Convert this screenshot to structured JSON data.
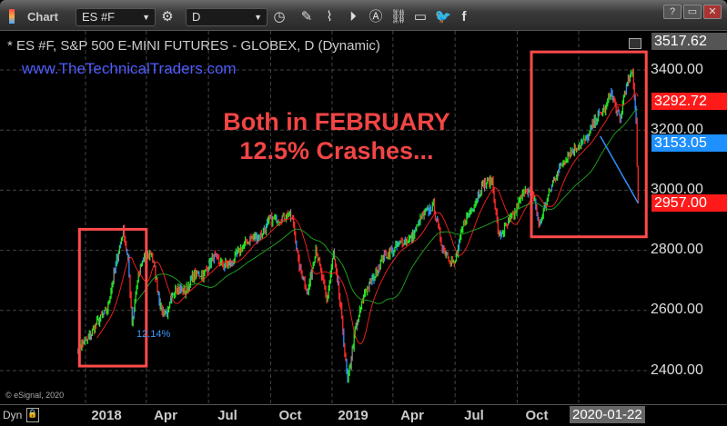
{
  "toolbar": {
    "title": "Chart",
    "symbol": "ES #F",
    "interval": "D",
    "icons": [
      "gear-icon",
      "clock-icon",
      "pencil-icon",
      "study-icon",
      "play-icon",
      "alert-icon",
      "link-icon",
      "comment-icon",
      "twitter-icon",
      "facebook-icon"
    ],
    "window_buttons": [
      "?",
      "▭",
      "✕"
    ]
  },
  "chart_header": {
    "symbol_line": "* ES #F, S&P 500 E-MINI FUTURES - GLOBEX, D (Dynamic)",
    "website": "www.TheTechnicalTraders.com"
  },
  "annotations": {
    "headline_1": "Both in FEBRUARY",
    "headline_2": "12.5% Crashes...",
    "pct_label": "12.14%",
    "copyright": "© eSignal, 2020"
  },
  "price_tags": {
    "top": "3517.62",
    "ma_red": "3292.72",
    "ma_blue": "3153.05",
    "last": "2957.00"
  },
  "colors": {
    "up": "#22e622",
    "down": "#ff2a2a",
    "box": "#ff4a4a",
    "headline": "#f24545",
    "trend": "#2f8fff",
    "ma_short": "#ff2020",
    "ma_long": "#1faa1f",
    "tag_red": "#ff1a1a",
    "tag_blue": "#1e90ff"
  },
  "xaxis": {
    "dyn": "Dyn",
    "labels": [
      "2018",
      "Apr",
      "Jul",
      "Oct",
      "2019",
      "Apr",
      "Jul",
      "Oct"
    ],
    "current": "2020-01-22"
  },
  "chart_data": {
    "type": "candlestick",
    "yticks": [
      "3400.00",
      "3200.00",
      "3000.00",
      "2800.00",
      "2600.00",
      "2400.00"
    ],
    "ylim": [
      2330,
      3517.62
    ],
    "grid": true,
    "closes": [
      [
        "2017-11-20",
        2480
      ],
      [
        "2017-12-04",
        2500
      ],
      [
        "2017-12-18",
        2560
      ],
      [
        "2018-01-02",
        2600
      ],
      [
        "2018-01-12",
        2720
      ],
      [
        "2018-01-26",
        2870
      ],
      [
        "2018-02-02",
        2760
      ],
      [
        "2018-02-08",
        2560
      ],
      [
        "2018-02-16",
        2700
      ],
      [
        "2018-02-26",
        2780
      ],
      [
        "2018-03-09",
        2790
      ],
      [
        "2018-03-23",
        2600
      ],
      [
        "2018-04-02",
        2590
      ],
      [
        "2018-04-13",
        2680
      ],
      [
        "2018-04-27",
        2660
      ],
      [
        "2018-05-11",
        2720
      ],
      [
        "2018-05-25",
        2720
      ],
      [
        "2018-06-08",
        2780
      ],
      [
        "2018-06-22",
        2750
      ],
      [
        "2018-07-06",
        2760
      ],
      [
        "2018-07-20",
        2810
      ],
      [
        "2018-08-03",
        2840
      ],
      [
        "2018-08-17",
        2850
      ],
      [
        "2018-08-31",
        2900
      ],
      [
        "2018-09-14",
        2905
      ],
      [
        "2018-09-28",
        2920
      ],
      [
        "2018-10-05",
        2890
      ],
      [
        "2018-10-12",
        2760
      ],
      [
        "2018-10-26",
        2660
      ],
      [
        "2018-11-07",
        2810
      ],
      [
        "2018-11-23",
        2630
      ],
      [
        "2018-12-03",
        2790
      ],
      [
        "2018-12-14",
        2600
      ],
      [
        "2018-12-24",
        2360
      ],
      [
        "2019-01-04",
        2530
      ],
      [
        "2019-01-18",
        2660
      ],
      [
        "2019-02-01",
        2710
      ],
      [
        "2019-02-15",
        2780
      ],
      [
        "2019-03-01",
        2800
      ],
      [
        "2019-03-15",
        2830
      ],
      [
        "2019-03-29",
        2840
      ],
      [
        "2019-04-12",
        2910
      ],
      [
        "2019-04-30",
        2950
      ],
      [
        "2019-05-13",
        2810
      ],
      [
        "2019-05-31",
        2750
      ],
      [
        "2019-06-14",
        2890
      ],
      [
        "2019-06-28",
        2950
      ],
      [
        "2019-07-12",
        3020
      ],
      [
        "2019-07-26",
        3030
      ],
      [
        "2019-08-05",
        2840
      ],
      [
        "2019-08-16",
        2880
      ],
      [
        "2019-08-30",
        2930
      ],
      [
        "2019-09-13",
        3010
      ],
      [
        "2019-09-27",
        2970
      ],
      [
        "2019-10-03",
        2880
      ],
      [
        "2019-10-18",
        2990
      ],
      [
        "2019-11-01",
        3070
      ],
      [
        "2019-11-15",
        3120
      ],
      [
        "2019-11-29",
        3145
      ],
      [
        "2019-12-13",
        3170
      ],
      [
        "2019-12-27",
        3240
      ],
      [
        "2020-01-10",
        3270
      ],
      [
        "2020-01-17",
        3330
      ],
      [
        "2020-01-31",
        3230
      ],
      [
        "2020-02-07",
        3330
      ],
      [
        "2020-02-19",
        3393
      ],
      [
        "2020-02-24",
        3230
      ],
      [
        "2020-02-27",
        2957
      ]
    ],
    "highlight_boxes": [
      [
        "2017-11-22",
        "2018-03-01",
        2870,
        2415
      ],
      [
        "2019-09-22",
        "2020-03-10",
        3460,
        2845
      ]
    ],
    "trendline": [
      [
        "2020-01-02",
        3180
      ],
      [
        "2020-02-27",
        2957
      ]
    ]
  }
}
